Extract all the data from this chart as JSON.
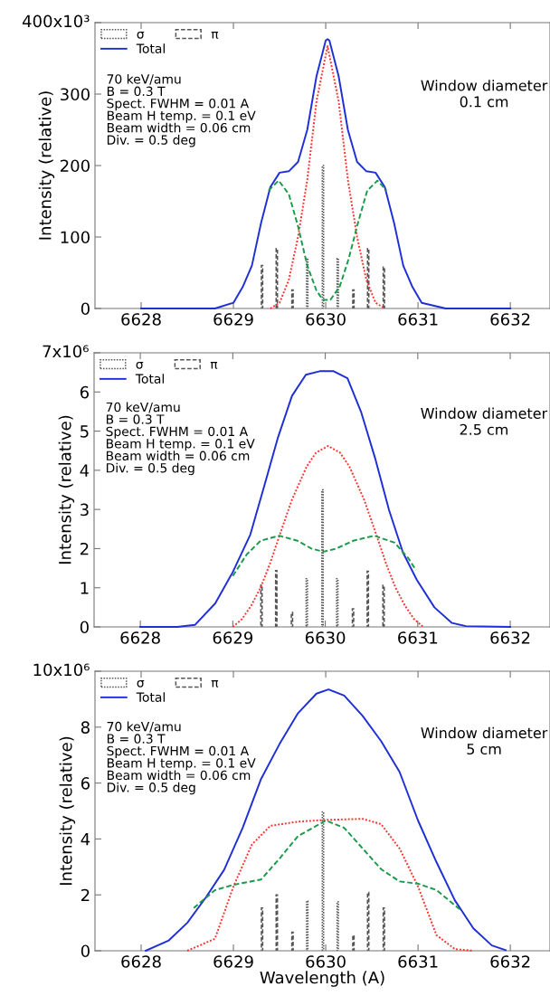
{
  "chart_data": [
    {
      "type": "line",
      "ylabel": "Intensity (relative)",
      "xlim": [
        6627.5,
        6632.43
      ],
      "xticks": [
        6628,
        6629,
        6630,
        6631,
        6632
      ],
      "ylim": [
        0,
        400
      ],
      "yticks": [
        0,
        100,
        200,
        300,
        {
          "value": 400,
          "label": null
        }
      ],
      "legend": "top left",
      "grid": false,
      "annotations": [
        "70 keV/amu\nB = 0.3 T\nSpect. FWHM = 0.01 A\nBeam H temp. = 0.1 eV\nBeam width = 0.06 cm\nDiv. = 0.5 deg",
        "Window diameter\n0.1 cm",
        "400x10³"
      ],
      "series": [
        {
          "name": "σ",
          "type": "bar",
          "line_style": "dotted",
          "color": "#555555",
          "x": [
            6629.8,
            6629.97,
            6630.13
          ],
          "values": [
            70,
            200,
            70
          ]
        },
        {
          "name": "π",
          "type": "bar",
          "line_style": "dashed",
          "color": "#555555",
          "x": [
            6629.31,
            6629.47,
            6629.64,
            6630.3,
            6630.46,
            6630.63
          ],
          "values": [
            60,
            84,
            26,
            26,
            84,
            58
          ]
        },
        {
          "name": "Total",
          "line_style": "solid",
          "color": "#1f2fd6",
          "x": [
            6628.0,
            6628.8,
            6629.0,
            6629.1,
            6629.2,
            6629.3,
            6629.4,
            6629.5,
            6629.6,
            6629.7,
            6629.8,
            6629.9,
            6630.0,
            6630.02,
            6630.04,
            6630.14,
            6630.24,
            6630.34,
            6630.44,
            6630.54,
            6630.64,
            6630.74,
            6630.84,
            6630.94,
            6631.04,
            6631.3,
            6632.0
          ],
          "values": [
            0,
            0,
            8,
            30,
            60,
            120,
            170,
            190,
            192,
            205,
            250,
            325,
            375,
            377,
            375,
            325,
            250,
            205,
            192,
            190,
            170,
            120,
            60,
            30,
            8,
            0,
            0
          ]
        },
        {
          "line_style": "dotted",
          "color": "#ff3030",
          "x": [
            6629.4,
            6629.5,
            6629.6,
            6629.7,
            6629.8,
            6629.9,
            6630.02,
            6630.14,
            6630.24,
            6630.34,
            6630.44,
            6630.54,
            6630.64
          ],
          "values": [
            0,
            8,
            40,
            100,
            180,
            290,
            367,
            290,
            180,
            100,
            40,
            8,
            0
          ]
        },
        {
          "line_style": "dashed",
          "color": "#1a9a4a",
          "x": [
            6629.38,
            6629.49,
            6629.6,
            6629.7,
            6629.8,
            6629.9,
            6629.97,
            6630.05,
            6630.15,
            6630.25,
            6630.35,
            6630.45,
            6630.56,
            6630.66
          ],
          "values": [
            165,
            179,
            160,
            115,
            60,
            25,
            12,
            12,
            30,
            70,
            120,
            165,
            179,
            165
          ]
        }
      ]
    },
    {
      "type": "line",
      "ylabel": "Intensity (relative)",
      "xlim": [
        6627.5,
        6632.43
      ],
      "xticks": [
        6628,
        6629,
        6630,
        6631,
        6632
      ],
      "ylim": [
        0,
        7
      ],
      "yticks": [
        0,
        1,
        2,
        3,
        4,
        5,
        6,
        {
          "value": 7,
          "label": null
        }
      ],
      "legend": "top left",
      "grid": false,
      "annotations": [
        "70 keV/amu\nB = 0.3 T\nSpect. FWHM = 0.01 A\nBeam H temp. = 0.1 eV\nBeam width = 0.06 cm\nDiv. = 0.5 deg",
        "Window diameter\n2.5 cm",
        "7x10⁶"
      ],
      "series": [
        {
          "name": "σ",
          "type": "bar",
          "line_style": "dotted",
          "color": "#555555",
          "x": [
            6629.8,
            6629.97,
            6630.13
          ],
          "values": [
            1.23,
            3.5,
            1.23
          ]
        },
        {
          "name": "π",
          "type": "bar",
          "line_style": "dashed",
          "color": "#555555",
          "x": [
            6629.31,
            6629.47,
            6629.64,
            6630.3,
            6630.46,
            6630.63
          ],
          "values": [
            1.07,
            1.44,
            0.37,
            0.46,
            1.42,
            1.06
          ]
        },
        {
          "name": "Total",
          "line_style": "solid",
          "color": "#1f2fd6",
          "x": [
            6628.0,
            6628.4,
            6628.59,
            6628.81,
            6629.0,
            6629.19,
            6629.34,
            6629.49,
            6629.64,
            6629.79,
            6629.94,
            6630.09,
            6630.24,
            6630.39,
            6630.54,
            6630.69,
            6630.84,
            6630.99,
            6631.18,
            6631.37,
            6631.52,
            6632.0
          ],
          "values": [
            0,
            0,
            0.05,
            0.6,
            1.4,
            2.36,
            3.6,
            4.85,
            5.9,
            6.44,
            6.53,
            6.53,
            6.35,
            5.47,
            4.3,
            2.98,
            1.9,
            1.2,
            0.5,
            0.1,
            0.02,
            0
          ]
        },
        {
          "line_style": "dotted",
          "color": "#ff3030",
          "x": [
            6629.0,
            6629.1,
            6629.2,
            6629.3,
            6629.4,
            6629.5,
            6629.64,
            6629.8,
            6629.9,
            6630.03,
            6630.16,
            6630.26,
            6630.42,
            6630.56,
            6630.66,
            6630.76,
            6630.86,
            6630.96,
            6631.06
          ],
          "values": [
            0,
            0.2,
            0.55,
            1.0,
            1.6,
            2.3,
            3.25,
            4.1,
            4.45,
            4.62,
            4.45,
            4.1,
            3.25,
            2.3,
            1.6,
            1.0,
            0.55,
            0.2,
            0
          ]
        },
        {
          "line_style": "dashed",
          "color": "#1a9a4a",
          "x": [
            6629.0,
            6629.15,
            6629.3,
            6629.5,
            6629.7,
            6629.85,
            6629.98,
            6630.12,
            6630.3,
            6630.53,
            6630.75,
            6630.9,
            6630.98
          ],
          "values": [
            1.3,
            1.85,
            2.2,
            2.33,
            2.2,
            2.0,
            1.92,
            2.0,
            2.2,
            2.33,
            2.15,
            1.75,
            1.45
          ]
        }
      ]
    },
    {
      "type": "line",
      "ylabel": "Intensity (relative)",
      "xlabel": "Wavelength (A)",
      "xlim": [
        6627.5,
        6632.43
      ],
      "xticks": [
        6628,
        6629,
        6630,
        6631,
        6632
      ],
      "ylim": [
        0,
        10
      ],
      "yticks": [
        0,
        2,
        4,
        6,
        8,
        {
          "value": 10,
          "label": null
        }
      ],
      "legend": "top left",
      "grid": false,
      "annotations": [
        "70 keV/amu\nB = 0.3 T\nSpect. FWHM = 0.01 A\nBeam H temp. = 0.1 eV\nBeam width = 0.06 cm\nDiv. = 0.5 deg",
        "Window diameter\n5 cm",
        "10x10⁶"
      ],
      "series": [
        {
          "name": "σ",
          "type": "bar",
          "line_style": "dotted",
          "color": "#555555",
          "x": [
            6629.8,
            6629.97,
            6630.13
          ],
          "values": [
            1.78,
            4.97,
            1.75
          ]
        },
        {
          "name": "π",
          "type": "bar",
          "line_style": "dashed",
          "color": "#555555",
          "x": [
            6629.31,
            6629.47,
            6629.64,
            6630.3,
            6630.46,
            6630.63
          ],
          "values": [
            1.53,
            2.0,
            0.66,
            0.55,
            2.09,
            1.53
          ]
        },
        {
          "name": "Total",
          "line_style": "solid",
          "color": "#1f2fd6",
          "x": [
            6628.05,
            6628.3,
            6628.5,
            6628.7,
            6628.9,
            6629.1,
            6629.3,
            6629.5,
            6629.7,
            6629.9,
            6630.03,
            6630.2,
            6630.4,
            6630.6,
            6630.8,
            6631.0,
            6631.2,
            6631.4,
            6631.6,
            6631.8,
            6631.95
          ],
          "values": [
            0,
            0.37,
            1.0,
            1.9,
            2.9,
            4.4,
            6.15,
            7.4,
            8.5,
            9.2,
            9.35,
            9.13,
            8.4,
            7.5,
            6.4,
            4.66,
            3.17,
            1.8,
            0.8,
            0.19,
            0.02
          ]
        },
        {
          "line_style": "dotted",
          "color": "#ff3030",
          "x": [
            6628.5,
            6628.8,
            6629.0,
            6629.2,
            6629.4,
            6629.7,
            6630.0,
            6630.4,
            6630.6,
            6630.8,
            6631.0,
            6631.2,
            6631.4,
            6631.6
          ],
          "values": [
            0,
            0.43,
            2.3,
            3.8,
            4.47,
            4.62,
            4.68,
            4.72,
            4.53,
            3.66,
            2.3,
            0.56,
            0.06,
            0
          ]
        },
        {
          "line_style": "dashed",
          "color": "#1a9a4a",
          "x": [
            6628.57,
            6628.8,
            6629.0,
            6629.3,
            6629.5,
            6629.7,
            6630.0,
            6630.2,
            6630.4,
            6630.6,
            6630.8,
            6631.0,
            6631.2,
            6631.45
          ],
          "values": [
            1.53,
            2.17,
            2.36,
            2.55,
            3.3,
            4.1,
            4.66,
            4.4,
            3.66,
            2.92,
            2.48,
            2.4,
            2.17,
            1.49
          ]
        }
      ]
    }
  ]
}
